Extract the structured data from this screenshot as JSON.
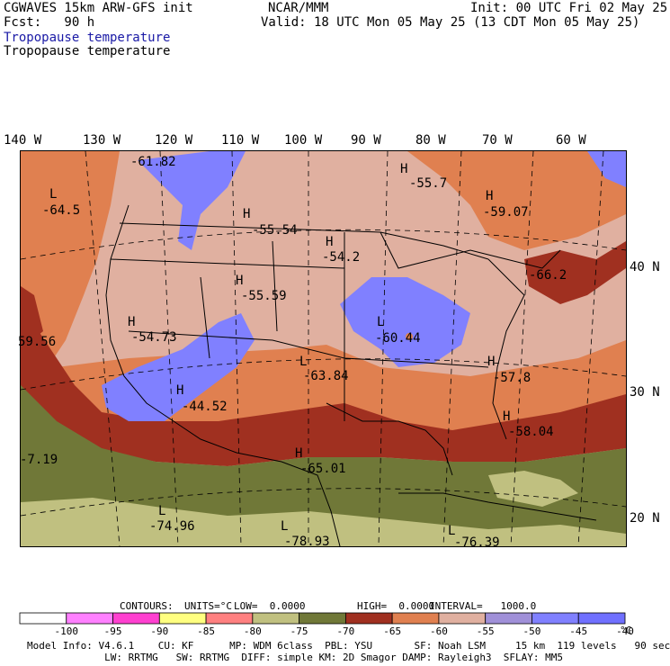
{
  "header": {
    "left_line1": "CGWAVES 15km ARW-GFS init",
    "left_line2": "Fcst:   90 h",
    "center": "NCAR/MMM",
    "right_line1": "Init: 00 UTC Fri 02 May 25",
    "right_line2": "Valid: 18 UTC Mon 05 May 25 (13 CDT Mon 05 May 25)",
    "field_title_blue": "Tropopause temperature",
    "field_title_black": "Tropopause temperature"
  },
  "map": {
    "lon_labels": [
      "140 W",
      "130 W",
      "120 W",
      "110 W",
      "100 W",
      "90 W",
      "80 W",
      "70 W",
      "60 W"
    ],
    "lat_labels": [
      "40 N",
      "30 N",
      "20 N"
    ],
    "extrema": [
      {
        "kind": "",
        "value": "-61.82"
      },
      {
        "kind": "H",
        "value": "-55.7"
      },
      {
        "kind": "L",
        "value": "-64.5"
      },
      {
        "kind": "H",
        "value": "-55.54"
      },
      {
        "kind": "H",
        "value": "-59.07"
      },
      {
        "kind": "H",
        "value": "-54.2"
      },
      {
        "kind": "",
        "value": "-66.2"
      },
      {
        "kind": "H",
        "value": "-55.59"
      },
      {
        "kind": "H",
        "value": "-54.73"
      },
      {
        "kind": "L",
        "value": "-60.44"
      },
      {
        "kind": "",
        "value": "59.56"
      },
      {
        "kind": "L",
        "value": "-63.84"
      },
      {
        "kind": "H",
        "value": "-57.8"
      },
      {
        "kind": "H",
        "value": "-44.52"
      },
      {
        "kind": "H",
        "value": "-58.04"
      },
      {
        "kind": "",
        "value": "-7.19"
      },
      {
        "kind": "H",
        "value": "-65.01"
      },
      {
        "kind": "L",
        "value": "-74.96"
      },
      {
        "kind": "L",
        "value": "-78.93"
      },
      {
        "kind": "L",
        "value": "-76.39"
      }
    ]
  },
  "contours": {
    "label": "CONTOURS:",
    "units": "UNITS=°C",
    "low": "LOW=  0.0000",
    "high": "HIGH=  0.0000",
    "interval": "INTERVAL=   1000.0"
  },
  "colorbar": {
    "colors": [
      "#ffffff",
      "#ff80ff",
      "#ff40d0",
      "#ffff80",
      "#ff8080",
      "#c0c080",
      "#707838",
      "#a03020",
      "#e08050",
      "#e0b0a0",
      "#a090d8",
      "#8080ff",
      "#7070ff"
    ],
    "ticks": [
      "-100",
      "-95",
      "-90",
      "-85",
      "-80",
      "-75",
      "-70",
      "-65",
      "-60",
      "-55",
      "-50",
      "-45",
      "-40"
    ],
    "unit": "°C"
  },
  "footer": {
    "line1": "Model Info: V4.6.1    CU: KF      MP: WDM 6class  PBL: YSU       SF: Noah LSM     15 km  119 levels   90 sec",
    "line2": "             LW: RRTMG   SW: RRTMG  DIFF: simple KM: 2D Smagor DAMP: Rayleigh3  SFLAY: MM5"
  }
}
